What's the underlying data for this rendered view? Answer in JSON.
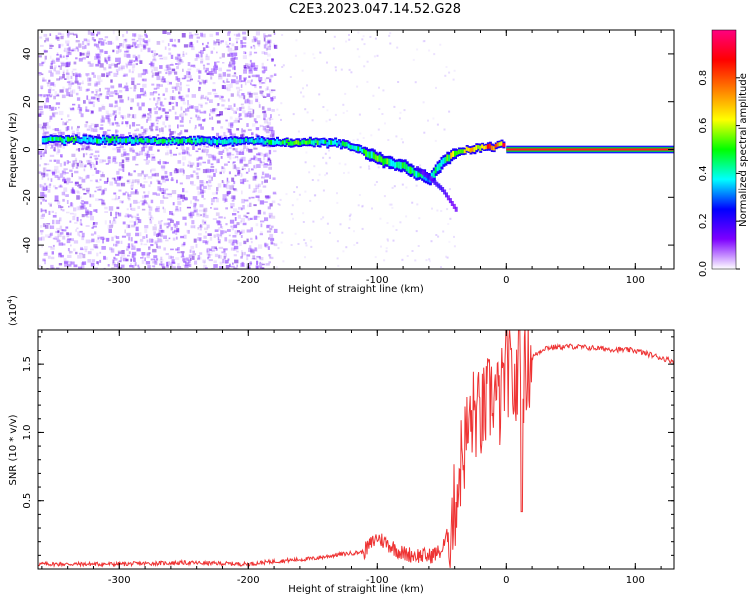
{
  "title": "C2E3.2023.047.14.52.G28",
  "chart_data": [
    {
      "type": "heatmap",
      "xlabel": "Height of straight line (km)",
      "ylabel": "Frequency (Hz)",
      "xlim": [
        -363,
        130
      ],
      "ylim": [
        -50,
        50
      ],
      "xticks": [
        -300,
        -200,
        -100,
        0,
        100
      ],
      "yticks": [
        -40,
        -20,
        0,
        20,
        40
      ],
      "colorbar": {
        "label": "Normalized spectral amplitude",
        "range": [
          0,
          1
        ],
        "ticks": [
          "0.0",
          "0.2",
          "0.4",
          "0.6",
          "0.8"
        ],
        "colormap": [
          "#ffffff",
          "#7d00ff",
          "#0000ff",
          "#00ffff",
          "#00ff00",
          "#ffff00",
          "#ff7f00",
          "#ff0000",
          "#ff0080"
        ]
      },
      "ridge": {
        "x": [
          -360,
          -300,
          -250,
          -200,
          -170,
          -150,
          -130,
          -120,
          -110,
          -100,
          -90,
          -80,
          -70,
          -60,
          -50,
          -45,
          -40,
          -30,
          -20,
          -10,
          -5,
          0,
          20,
          60,
          100,
          130
        ],
        "y": [
          4,
          4,
          3.5,
          3.5,
          3,
          3,
          2.5,
          1,
          -1,
          -4,
          -6,
          -7,
          -10,
          -12,
          -5,
          -3,
          -1,
          0,
          1,
          1,
          3,
          0.5,
          0,
          0,
          0,
          0
        ],
        "amplitude": [
          0.5,
          0.45,
          0.45,
          0.4,
          0.55,
          0.5,
          0.45,
          0.45,
          0.5,
          0.55,
          0.5,
          0.5,
          0.45,
          0.4,
          0.5,
          0.6,
          0.7,
          0.75,
          0.8,
          0.85,
          0.85,
          0.95,
          1,
          1,
          1,
          1
        ]
      },
      "branch": {
        "x": [
          -70,
          -60,
          -50,
          -40
        ],
        "y": [
          -8,
          -12,
          -17,
          -25
        ]
      },
      "noise_region_x": [
        -363,
        -180
      ]
    },
    {
      "type": "line",
      "xlabel": "Height of straight line (km)",
      "ylabel": "SNR (10 * v/v)",
      "multiplier": "(x10",
      "multiplier_exp": "4",
      "multiplier_close": ")",
      "xlim": [
        -363,
        130
      ],
      "ylim": [
        0,
        1.75
      ],
      "xticks": [
        -300,
        -200,
        -100,
        0,
        100
      ],
      "yticks": [
        0.5,
        1.0,
        1.5
      ],
      "ytick_labels": [
        "0.5",
        "1.0",
        "1.5"
      ],
      "color": "#ee3333",
      "series": [
        {
          "x": [
            -363,
            -300,
            -250,
            -200,
            -180,
            -150,
            -130,
            -110,
            -100,
            -80,
            -60,
            -50,
            -45,
            -40,
            -35,
            -30,
            -25,
            -20,
            -15,
            -10,
            -5,
            0,
            5,
            10,
            15,
            20,
            30,
            50,
            80,
            100,
            130
          ],
          "y": [
            0.03,
            0.03,
            0.04,
            0.03,
            0.05,
            0.07,
            0.1,
            0.12,
            0.22,
            0.1,
            0.08,
            0.12,
            0.25,
            0.45,
            0.8,
            1.0,
            1.15,
            1.1,
            1.2,
            1.3,
            1.2,
            1.5,
            1.35,
            1.25,
            1.45,
            1.55,
            1.62,
            1.63,
            1.61,
            1.6,
            1.52
          ],
          "features": [
            {
              "x": 10,
              "y": 1.76,
              "kind": "spike"
            },
            {
              "x": 12,
              "y": 0.42,
              "kind": "dip"
            }
          ]
        }
      ]
    }
  ]
}
